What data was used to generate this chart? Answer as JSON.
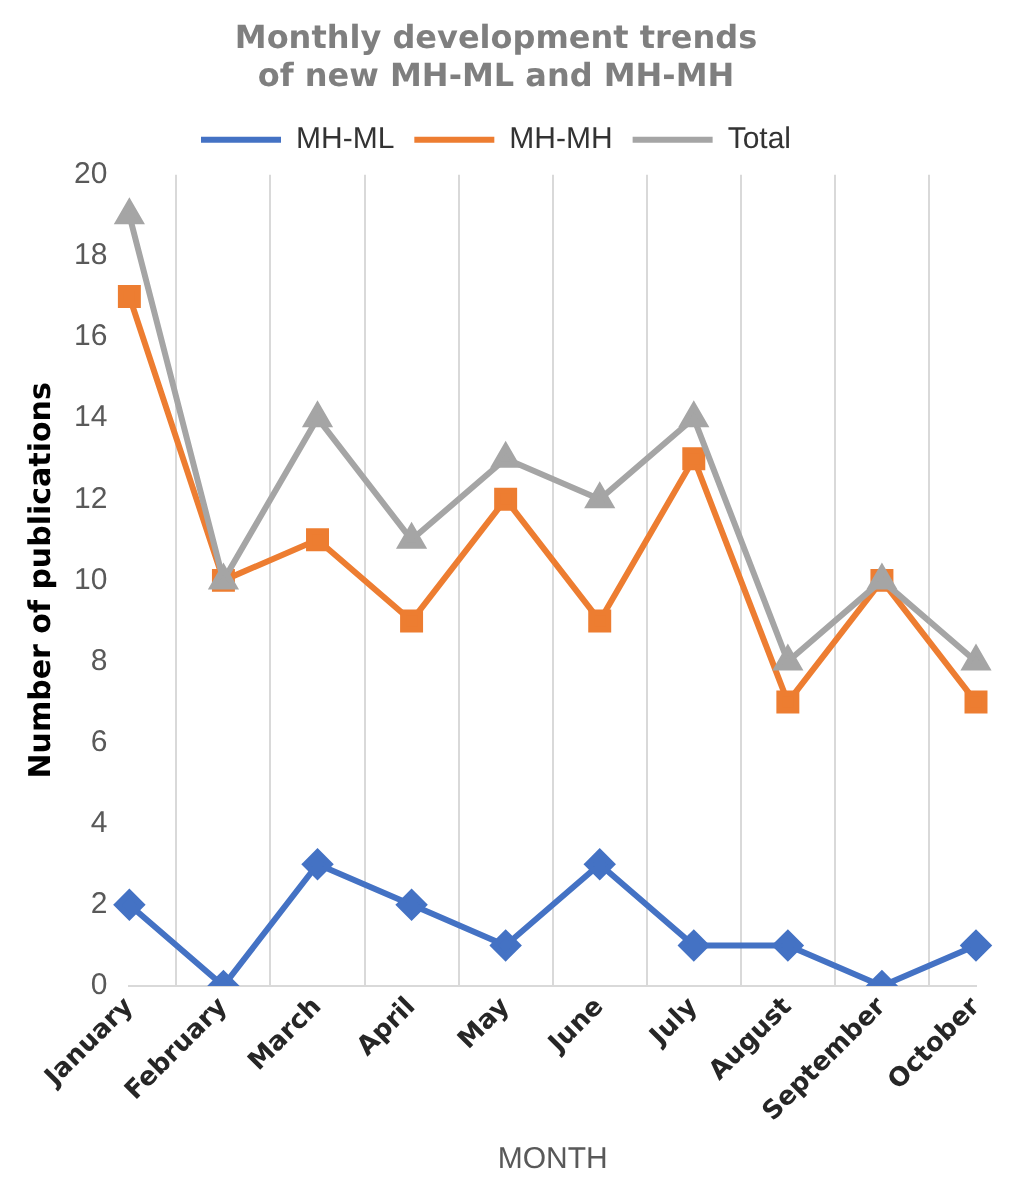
{
  "chart_data": {
    "type": "line",
    "title": "Monthly development trends of new MH-ML and MH-MH",
    "xlabel": "MONTH",
    "ylabel": "Number of publications",
    "categories": [
      "January",
      "February",
      "March",
      "April",
      "May",
      "June",
      "July",
      "August",
      "September",
      "October"
    ],
    "series": [
      {
        "name": "MH-ML",
        "color": "#4472c4",
        "marker": "diamond",
        "values": [
          2,
          0,
          3,
          2,
          1,
          3,
          1,
          1,
          0,
          1
        ]
      },
      {
        "name": "MH-MH",
        "color": "#ed7d31",
        "marker": "square",
        "values": [
          17,
          10,
          11,
          9,
          12,
          9,
          13,
          7,
          10,
          7
        ]
      },
      {
        "name": "Total",
        "color": "#a5a5a5",
        "marker": "triangle",
        "values": [
          19,
          10,
          14,
          11,
          13,
          12,
          14,
          8,
          10,
          8
        ]
      }
    ],
    "ylim": [
      0,
      20
    ],
    "yticks": [
      0,
      2,
      4,
      6,
      8,
      10,
      12,
      14,
      16,
      18,
      20
    ],
    "grid": "x",
    "legend": "top",
    "line_style": "solid"
  }
}
